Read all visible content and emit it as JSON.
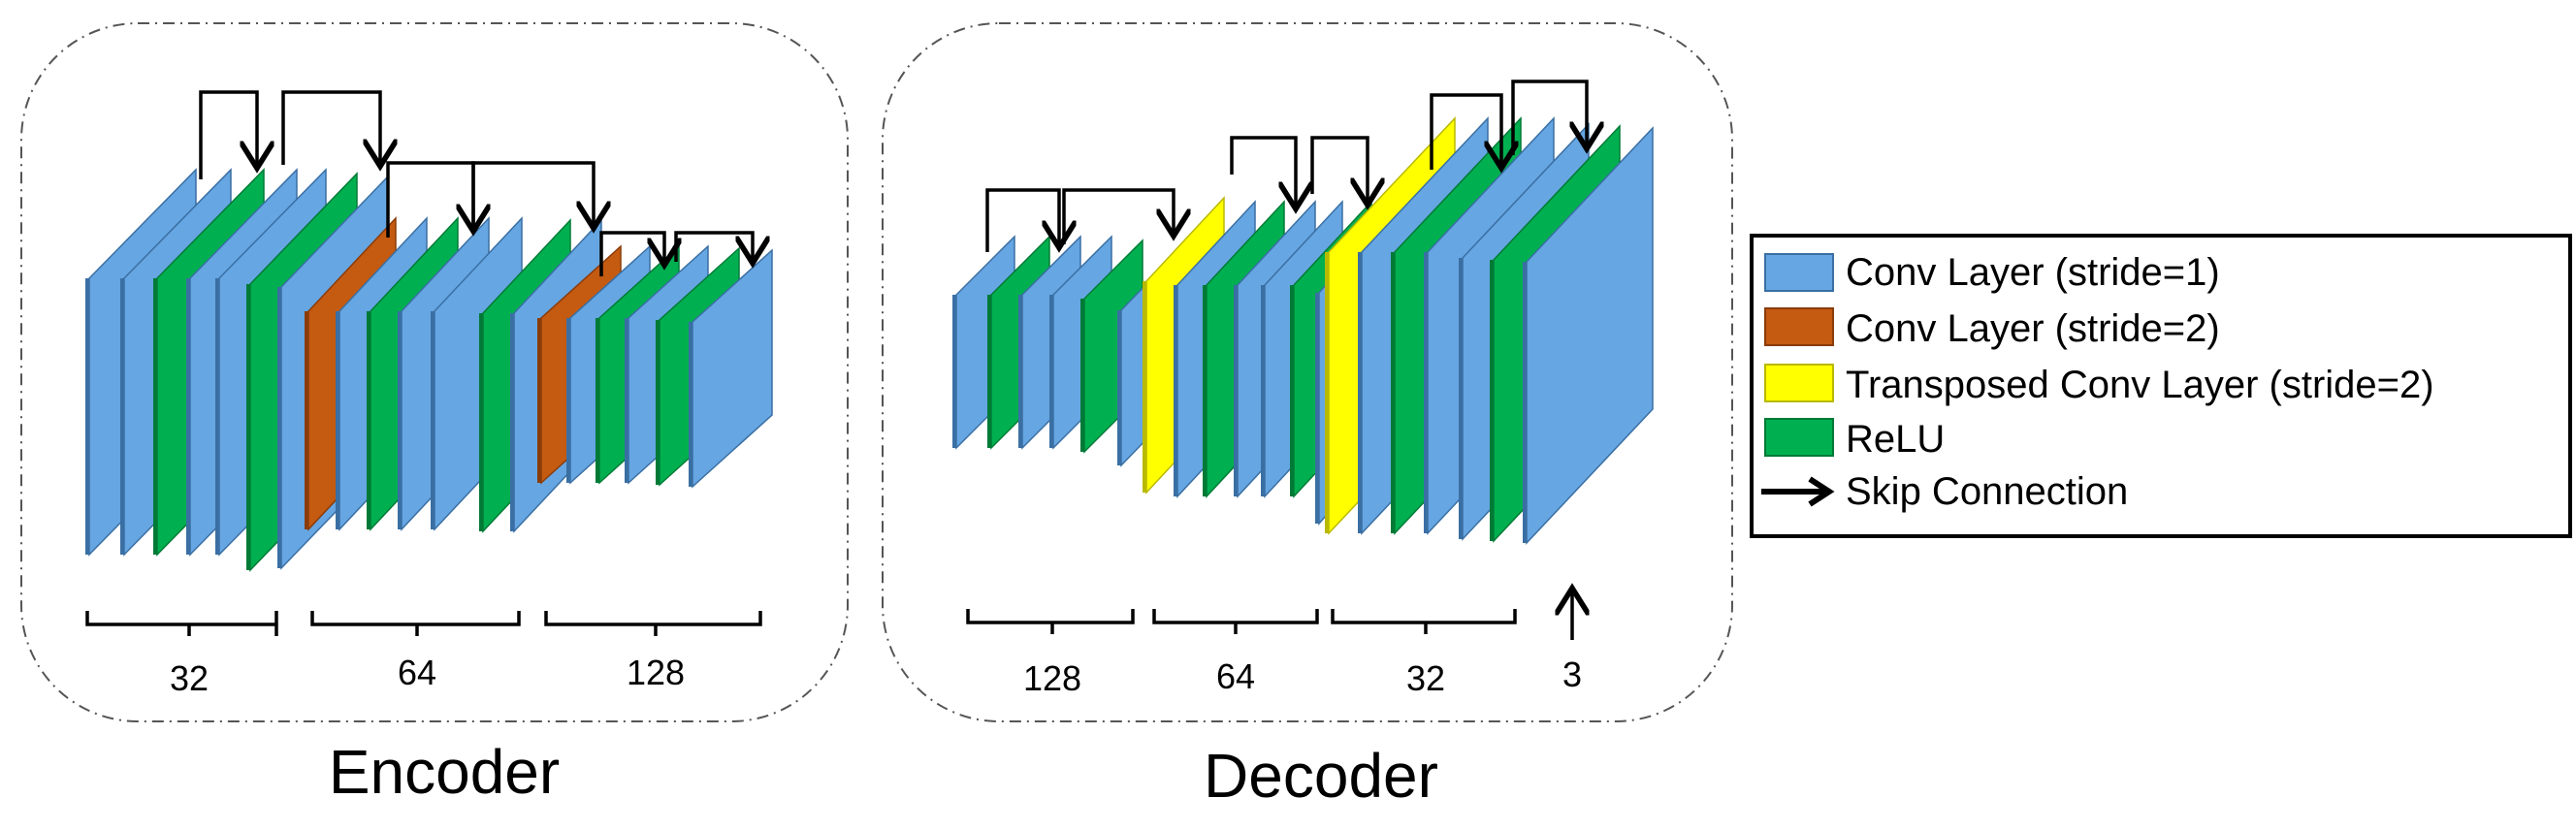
{
  "colors": {
    "conv": "#66A6E2",
    "conv_edge": "#3A6FA3",
    "conv2": "#C55A11",
    "conv2_edge": "#8A3C08",
    "tconv": "#FFFF00",
    "tconv_edge": "#B9B900",
    "relu": "#00B050",
    "relu_edge": "#007A36"
  },
  "encoder": {
    "title": "Encoder",
    "brace_labels": [
      "32",
      "64",
      "128"
    ]
  },
  "decoder": {
    "title": "Decoder",
    "brace_labels": [
      "128",
      "64",
      "32",
      "3"
    ]
  },
  "legend": {
    "items": [
      {
        "label": "Conv Layer (stride=1)",
        "type": "conv"
      },
      {
        "label": "Conv Layer (stride=2)",
        "type": "conv2"
      },
      {
        "label": "Transposed Conv Layer (stride=2)",
        "type": "tconv"
      },
      {
        "label": "ReLU",
        "type": "relu"
      },
      {
        "label": "Skip Connection",
        "type": "skip"
      }
    ]
  }
}
